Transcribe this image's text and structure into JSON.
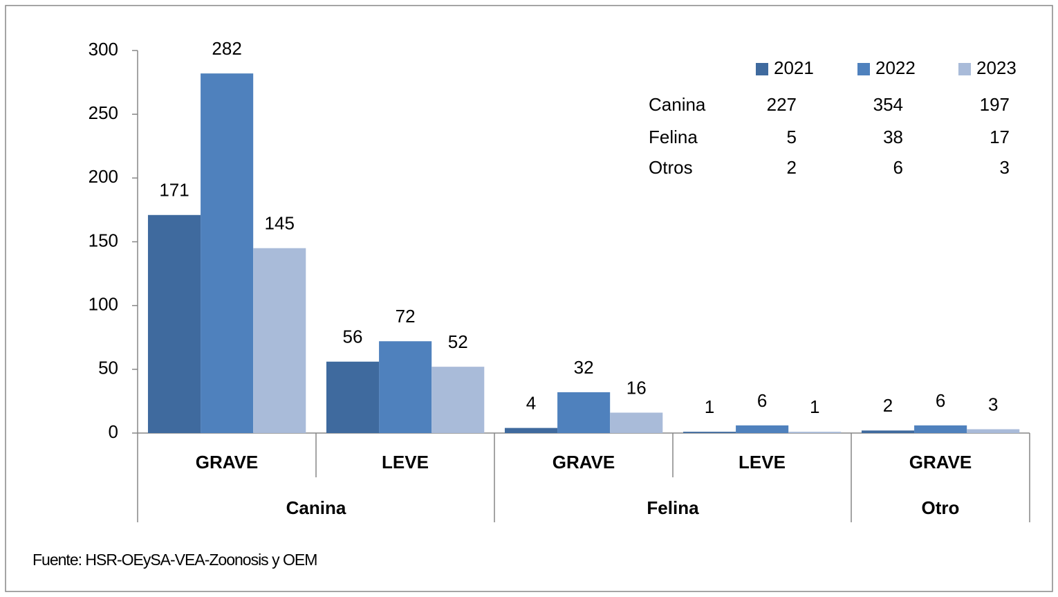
{
  "chart_data": {
    "type": "bar",
    "groups": [
      {
        "label": "Canina",
        "categories": [
          "GRAVE",
          "LEVE"
        ]
      },
      {
        "label": "Felina",
        "categories": [
          "GRAVE",
          "LEVE"
        ]
      },
      {
        "label": "Otro",
        "categories": [
          "GRAVE"
        ]
      }
    ],
    "series": [
      {
        "name": "2021",
        "color": "#3f6a9e",
        "values": [
          171,
          56,
          4,
          1,
          2
        ]
      },
      {
        "name": "2022",
        "color": "#4f81bd",
        "values": [
          282,
          72,
          32,
          6,
          6
        ]
      },
      {
        "name": "2023",
        "color": "#a9bbd9",
        "values": [
          145,
          52,
          16,
          1,
          3
        ]
      }
    ],
    "ylim": [
      0,
      300
    ],
    "yticks": [
      0,
      50,
      100,
      150,
      200,
      250,
      300
    ],
    "summary_table": {
      "rows": [
        {
          "label": "Canina",
          "values": [
            227,
            354,
            197
          ]
        },
        {
          "label": "Felina",
          "values": [
            5,
            38,
            17
          ]
        },
        {
          "label": "Otros",
          "values": [
            2,
            6,
            3
          ]
        }
      ]
    },
    "note": "Fuente: HSR-OEySA-VEA-Zoonosis y OEM"
  }
}
